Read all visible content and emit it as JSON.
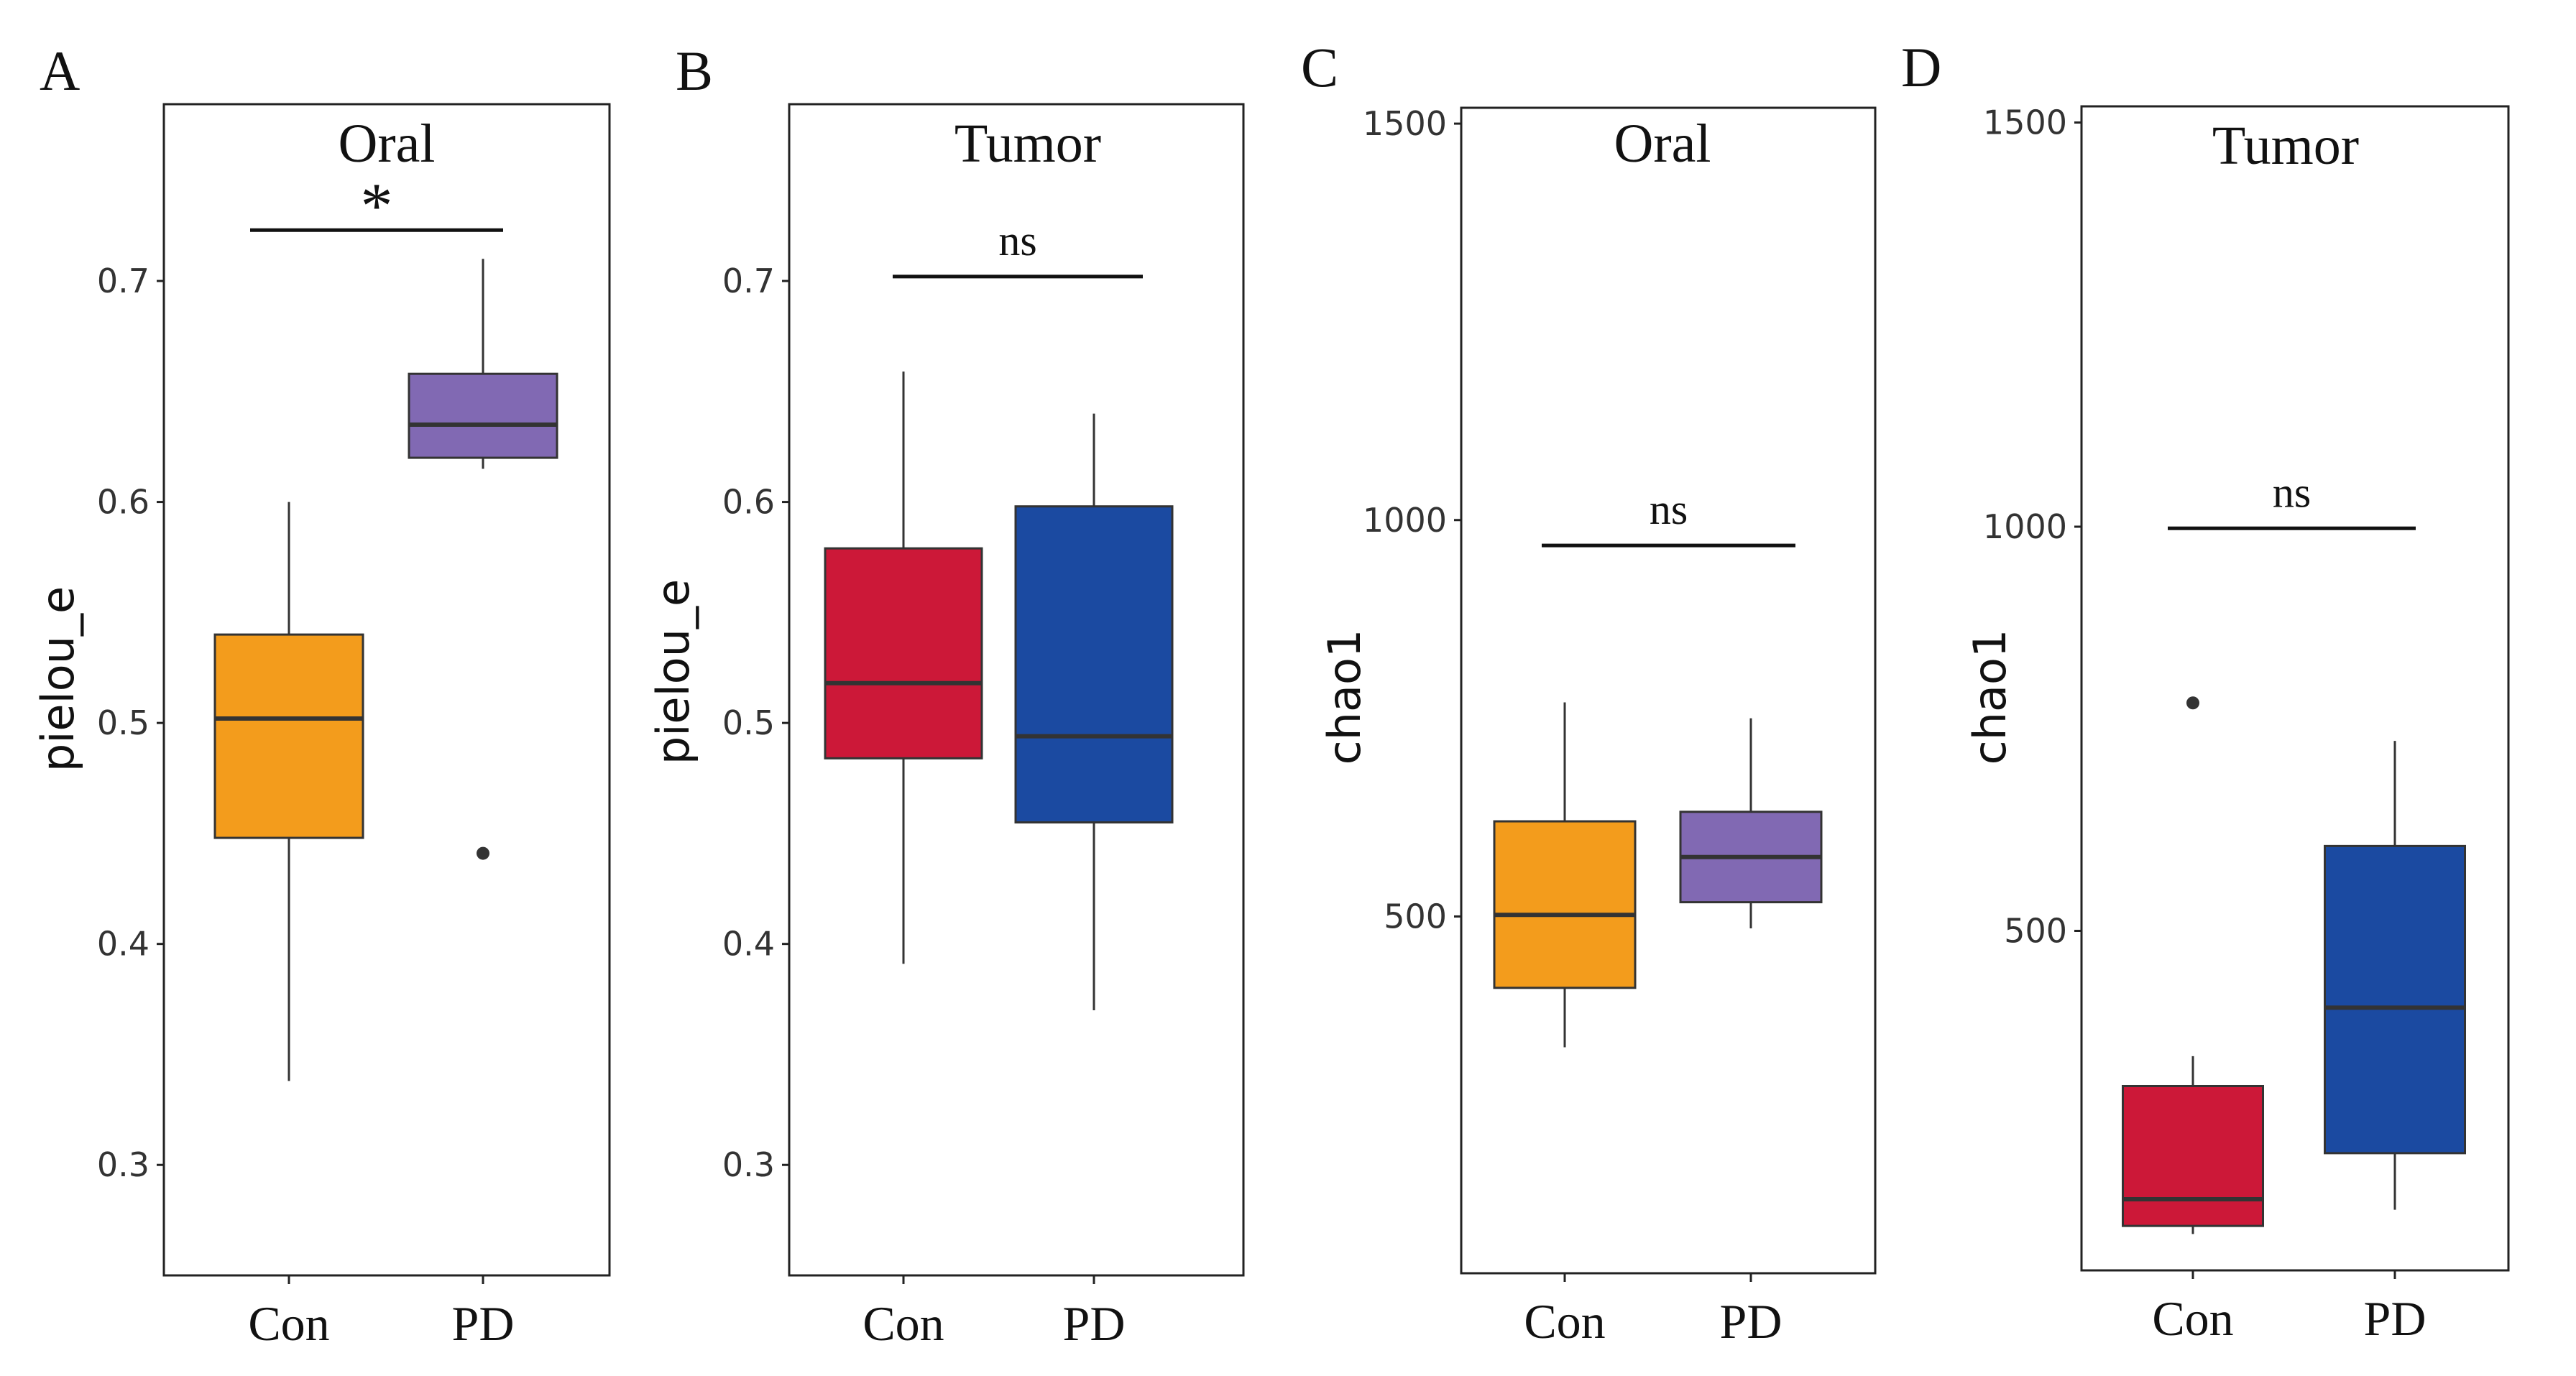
{
  "chart_data": [
    {
      "panel": "A",
      "type": "box",
      "title": "Oral",
      "ylabel": "pielou_e",
      "ylim": [
        0.25,
        0.78
      ],
      "yticks": [
        0.3,
        0.4,
        0.5,
        0.6,
        0.7
      ],
      "categories": [
        "Con",
        "PD"
      ],
      "boxes": [
        {
          "label": "Con",
          "color": "#F39C1C",
          "whisker_low": 0.338,
          "q1": 0.448,
          "median": 0.502,
          "q3": 0.54,
          "whisker_high": 0.6,
          "outliers": []
        },
        {
          "label": "PD",
          "color": "#8169B3",
          "whisker_low": 0.615,
          "q1": 0.62,
          "median": 0.635,
          "q3": 0.658,
          "whisker_high": 0.71,
          "outliers": [
            0.441
          ]
        }
      ],
      "significance": {
        "label": "*",
        "y": 0.723
      }
    },
    {
      "panel": "B",
      "type": "box",
      "title": "Tumor",
      "ylabel": "pielou_e",
      "ylim": [
        0.25,
        0.78
      ],
      "yticks": [
        0.3,
        0.4,
        0.5,
        0.6,
        0.7
      ],
      "categories": [
        "Con",
        "PD"
      ],
      "boxes": [
        {
          "label": "Con",
          "color": "#CC1838",
          "whisker_low": 0.391,
          "q1": 0.484,
          "median": 0.518,
          "q3": 0.579,
          "whisker_high": 0.659,
          "outliers": []
        },
        {
          "label": "PD",
          "color": "#1B4AA1",
          "whisker_low": 0.37,
          "q1": 0.455,
          "median": 0.494,
          "q3": 0.598,
          "whisker_high": 0.64,
          "outliers": []
        }
      ],
      "significance": {
        "label": "ns",
        "y": 0.702
      }
    },
    {
      "panel": "C",
      "type": "box",
      "title": "Oral",
      "ylabel": "chao1",
      "ylim": [
        50,
        1520
      ],
      "yticks": [
        500,
        1000,
        1500
      ],
      "categories": [
        "Con",
        "PD"
      ],
      "boxes": [
        {
          "label": "Con",
          "color": "#F39C1C",
          "whisker_low": 335,
          "q1": 410,
          "median": 502,
          "q3": 620,
          "whisker_high": 770,
          "outliers": []
        },
        {
          "label": "PD",
          "color": "#8169B3",
          "whisker_low": 485,
          "q1": 518,
          "median": 575,
          "q3": 632,
          "whisker_high": 750,
          "outliers": []
        }
      ],
      "significance": {
        "label": "ns",
        "y": 968
      }
    },
    {
      "panel": "D",
      "type": "box",
      "title": "Tumor",
      "ylabel": "chao1",
      "ylim": [
        80,
        1520
      ],
      "yticks": [
        500,
        1000,
        1500
      ],
      "categories": [
        "Con",
        "PD"
      ],
      "boxes": [
        {
          "label": "Con",
          "color": "#CC1838",
          "whisker_low": 125,
          "q1": 135,
          "median": 168,
          "q3": 308,
          "whisker_high": 345,
          "outliers": [
            782
          ]
        },
        {
          "label": "PD",
          "color": "#1B4AA1",
          "whisker_low": 155,
          "q1": 225,
          "median": 405,
          "q3": 605,
          "whisker_high": 735,
          "outliers": []
        }
      ],
      "significance": {
        "label": "ns",
        "y": 998
      }
    }
  ]
}
